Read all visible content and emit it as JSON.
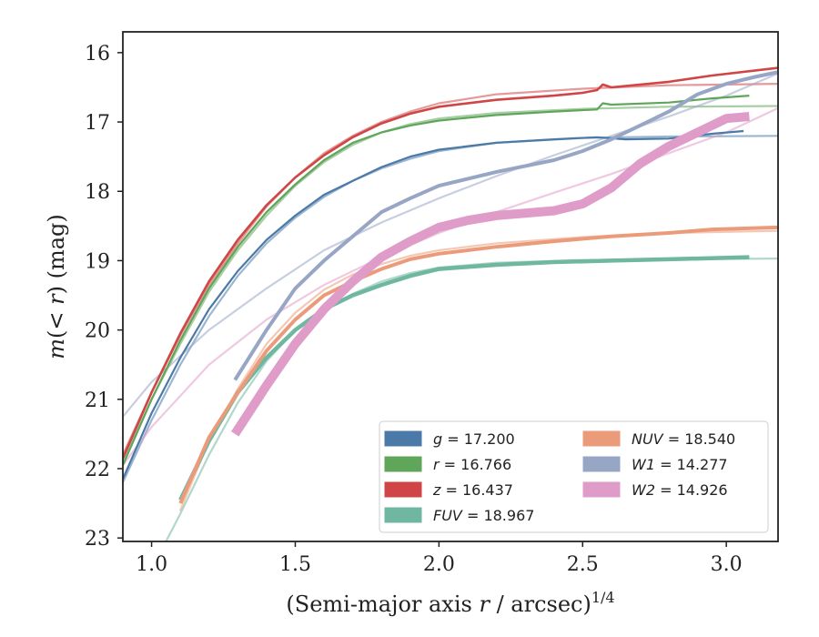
{
  "chart_data": {
    "type": "line",
    "xlabel": "(Semi-major axis r / arcsec)^1/4",
    "xlabel_parts": {
      "prefix": "(Semi-major axis ",
      "var": "r",
      "mid": " / arcsec)",
      "sup": "1/4"
    },
    "ylabel": "m(< r) (mag)",
    "ylabel_parts": {
      "var": "m",
      "mid": "(< ",
      "var2": "r",
      "tail": ") (mag)"
    },
    "xlim": [
      0.9,
      3.18
    ],
    "ylim": [
      23.05,
      15.7
    ],
    "y_inverted": true,
    "xticks": [
      1.0,
      1.5,
      2.0,
      2.5,
      3.0
    ],
    "xtick_labels": [
      "1.0",
      "1.5",
      "2.0",
      "2.5",
      "3.0"
    ],
    "yticks": [
      16,
      17,
      18,
      19,
      20,
      21,
      22,
      23
    ],
    "ytick_labels": [
      "16",
      "17",
      "18",
      "19",
      "20",
      "21",
      "22",
      "23"
    ],
    "grid": false,
    "legend_position": "lower-right",
    "series": [
      {
        "band": "g",
        "label": "= 17.200",
        "color": "#4c7aa8",
        "width": 2.2,
        "data": [
          [
            0.9,
            22.15
          ],
          [
            1.0,
            21.2
          ],
          [
            1.1,
            20.4
          ],
          [
            1.2,
            19.7
          ],
          [
            1.3,
            19.15
          ],
          [
            1.4,
            18.7
          ],
          [
            1.5,
            18.35
          ],
          [
            1.6,
            18.05
          ],
          [
            1.7,
            17.85
          ],
          [
            1.8,
            17.65
          ],
          [
            1.9,
            17.5
          ],
          [
            2.0,
            17.4
          ],
          [
            2.2,
            17.3
          ],
          [
            2.4,
            17.25
          ],
          [
            2.55,
            17.22
          ],
          [
            2.65,
            17.25
          ],
          [
            2.8,
            17.24
          ],
          [
            2.95,
            17.17
          ],
          [
            3.06,
            17.13
          ]
        ],
        "fit": [
          [
            0.9,
            22.2
          ],
          [
            1.0,
            21.3
          ],
          [
            1.1,
            20.5
          ],
          [
            1.2,
            19.8
          ],
          [
            1.3,
            19.22
          ],
          [
            1.4,
            18.75
          ],
          [
            1.5,
            18.38
          ],
          [
            1.6,
            18.08
          ],
          [
            1.7,
            17.85
          ],
          [
            1.8,
            17.67
          ],
          [
            1.9,
            17.53
          ],
          [
            2.0,
            17.42
          ],
          [
            2.2,
            17.3
          ],
          [
            2.5,
            17.23
          ],
          [
            2.8,
            17.21
          ],
          [
            3.18,
            17.2
          ]
        ]
      },
      {
        "band": "r",
        "label": "= 16.766",
        "color": "#5fa65a",
        "width": 2.2,
        "data": [
          [
            0.9,
            21.95
          ],
          [
            1.0,
            21.0
          ],
          [
            1.1,
            20.15
          ],
          [
            1.2,
            19.4
          ],
          [
            1.3,
            18.8
          ],
          [
            1.4,
            18.3
          ],
          [
            1.5,
            17.9
          ],
          [
            1.6,
            17.55
          ],
          [
            1.7,
            17.3
          ],
          [
            1.8,
            17.15
          ],
          [
            1.9,
            17.05
          ],
          [
            2.0,
            16.98
          ],
          [
            2.2,
            16.9
          ],
          [
            2.4,
            16.85
          ],
          [
            2.55,
            16.82
          ],
          [
            2.57,
            16.73
          ],
          [
            2.6,
            16.75
          ],
          [
            2.8,
            16.72
          ],
          [
            2.95,
            16.66
          ],
          [
            3.08,
            16.62
          ]
        ],
        "fit": [
          [
            0.9,
            21.9
          ],
          [
            1.0,
            21.0
          ],
          [
            1.1,
            20.2
          ],
          [
            1.2,
            19.45
          ],
          [
            1.3,
            18.85
          ],
          [
            1.4,
            18.35
          ],
          [
            1.5,
            17.92
          ],
          [
            1.6,
            17.58
          ],
          [
            1.7,
            17.33
          ],
          [
            1.8,
            17.15
          ],
          [
            1.9,
            17.03
          ],
          [
            2.0,
            16.95
          ],
          [
            2.2,
            16.87
          ],
          [
            2.5,
            16.81
          ],
          [
            2.8,
            16.78
          ],
          [
            3.18,
            16.77
          ]
        ]
      },
      {
        "band": "z",
        "label": "= 16.437",
        "color": "#d04545",
        "width": 2.6,
        "data": [
          [
            0.9,
            21.85
          ],
          [
            1.0,
            20.9
          ],
          [
            1.1,
            20.05
          ],
          [
            1.2,
            19.3
          ],
          [
            1.3,
            18.7
          ],
          [
            1.4,
            18.2
          ],
          [
            1.5,
            17.8
          ],
          [
            1.6,
            17.48
          ],
          [
            1.7,
            17.22
          ],
          [
            1.8,
            17.02
          ],
          [
            1.9,
            16.88
          ],
          [
            2.0,
            16.78
          ],
          [
            2.2,
            16.68
          ],
          [
            2.4,
            16.62
          ],
          [
            2.5,
            16.58
          ],
          [
            2.55,
            16.54
          ],
          [
            2.57,
            16.46
          ],
          [
            2.6,
            16.5
          ],
          [
            2.8,
            16.42
          ],
          [
            2.95,
            16.33
          ],
          [
            3.18,
            16.22
          ]
        ],
        "fit": [
          [
            0.9,
            21.8
          ],
          [
            1.0,
            20.9
          ],
          [
            1.1,
            20.08
          ],
          [
            1.2,
            19.35
          ],
          [
            1.3,
            18.75
          ],
          [
            1.4,
            18.22
          ],
          [
            1.5,
            17.8
          ],
          [
            1.6,
            17.45
          ],
          [
            1.7,
            17.2
          ],
          [
            1.8,
            17.0
          ],
          [
            1.9,
            16.85
          ],
          [
            2.0,
            16.73
          ],
          [
            2.2,
            16.6
          ],
          [
            2.5,
            16.52
          ],
          [
            2.8,
            16.47
          ],
          [
            3.18,
            16.45
          ]
        ]
      },
      {
        "band": "FUV",
        "label": "= 18.967",
        "color": "#6fb7a0",
        "width": 4.5,
        "data": [
          [
            1.1,
            22.45
          ],
          [
            1.2,
            21.6
          ],
          [
            1.3,
            20.9
          ],
          [
            1.4,
            20.4
          ],
          [
            1.5,
            20.0
          ],
          [
            1.6,
            19.7
          ],
          [
            1.7,
            19.5
          ],
          [
            1.8,
            19.35
          ],
          [
            1.9,
            19.22
          ],
          [
            2.0,
            19.12
          ],
          [
            2.2,
            19.06
          ],
          [
            2.4,
            19.02
          ],
          [
            2.6,
            19.0
          ],
          [
            2.8,
            18.98
          ],
          [
            3.08,
            18.95
          ]
        ],
        "fit": [
          [
            1.05,
            23.05
          ],
          [
            1.1,
            22.65
          ],
          [
            1.2,
            21.8
          ],
          [
            1.3,
            21.05
          ],
          [
            1.4,
            20.45
          ],
          [
            1.5,
            20.0
          ],
          [
            1.6,
            19.7
          ],
          [
            1.7,
            19.48
          ],
          [
            1.8,
            19.3
          ],
          [
            1.9,
            19.18
          ],
          [
            2.0,
            19.1
          ],
          [
            2.2,
            19.03
          ],
          [
            2.5,
            18.99
          ],
          [
            3.18,
            18.97
          ]
        ]
      },
      {
        "band": "NUV",
        "label": "= 18.540",
        "color": "#ec9b7a",
        "width": 4,
        "data": [
          [
            1.1,
            22.5
          ],
          [
            1.2,
            21.55
          ],
          [
            1.3,
            20.9
          ],
          [
            1.4,
            20.3
          ],
          [
            1.5,
            19.85
          ],
          [
            1.6,
            19.5
          ],
          [
            1.7,
            19.3
          ],
          [
            1.8,
            19.12
          ],
          [
            1.9,
            18.98
          ],
          [
            2.0,
            18.9
          ],
          [
            2.2,
            18.8
          ],
          [
            2.4,
            18.72
          ],
          [
            2.6,
            18.65
          ],
          [
            2.8,
            18.6
          ],
          [
            2.95,
            18.55
          ],
          [
            3.18,
            18.52
          ]
        ],
        "fit": [
          [
            1.1,
            22.6
          ],
          [
            1.2,
            21.6
          ],
          [
            1.3,
            20.85
          ],
          [
            1.4,
            20.2
          ],
          [
            1.5,
            19.75
          ],
          [
            1.6,
            19.42
          ],
          [
            1.7,
            19.2
          ],
          [
            1.8,
            19.05
          ],
          [
            1.9,
            18.93
          ],
          [
            2.0,
            18.85
          ],
          [
            2.2,
            18.75
          ],
          [
            2.5,
            18.66
          ],
          [
            2.8,
            18.6
          ],
          [
            3.18,
            18.57
          ]
        ]
      },
      {
        "band": "W1",
        "label": "= 14.277",
        "color": "#97a6c4",
        "width": 4,
        "data": [
          [
            1.29,
            20.72
          ],
          [
            1.4,
            20.0
          ],
          [
            1.5,
            19.4
          ],
          [
            1.6,
            19.0
          ],
          [
            1.7,
            18.65
          ],
          [
            1.8,
            18.3
          ],
          [
            1.9,
            18.1
          ],
          [
            2.0,
            17.92
          ],
          [
            2.2,
            17.72
          ],
          [
            2.4,
            17.55
          ],
          [
            2.5,
            17.42
          ],
          [
            2.6,
            17.25
          ],
          [
            2.7,
            17.05
          ],
          [
            2.8,
            16.85
          ],
          [
            2.9,
            16.6
          ],
          [
            3.0,
            16.45
          ],
          [
            3.1,
            16.35
          ],
          [
            3.18,
            16.28
          ]
        ],
        "fit": [
          [
            0.9,
            21.25
          ],
          [
            1.0,
            20.75
          ],
          [
            1.2,
            20.0
          ],
          [
            1.4,
            19.4
          ],
          [
            1.6,
            18.85
          ],
          [
            1.8,
            18.45
          ],
          [
            2.0,
            18.1
          ],
          [
            2.2,
            17.78
          ],
          [
            2.4,
            17.48
          ],
          [
            2.6,
            17.2
          ],
          [
            2.8,
            16.92
          ],
          [
            3.0,
            16.62
          ],
          [
            3.18,
            16.3
          ]
        ]
      },
      {
        "band": "W2",
        "label": "= 14.926",
        "color": "#e09cc9",
        "width": 10,
        "data": [
          [
            1.29,
            21.5
          ],
          [
            1.4,
            20.8
          ],
          [
            1.5,
            20.2
          ],
          [
            1.6,
            19.7
          ],
          [
            1.7,
            19.3
          ],
          [
            1.8,
            18.95
          ],
          [
            1.9,
            18.72
          ],
          [
            2.0,
            18.52
          ],
          [
            2.1,
            18.42
          ],
          [
            2.2,
            18.35
          ],
          [
            2.4,
            18.28
          ],
          [
            2.5,
            18.18
          ],
          [
            2.6,
            17.95
          ],
          [
            2.7,
            17.6
          ],
          [
            2.8,
            17.35
          ],
          [
            2.9,
            17.15
          ],
          [
            3.0,
            16.95
          ],
          [
            3.08,
            16.92
          ]
        ],
        "fit": [
          [
            0.9,
            21.95
          ],
          [
            1.0,
            21.4
          ],
          [
            1.2,
            20.5
          ],
          [
            1.4,
            19.85
          ],
          [
            1.6,
            19.35
          ],
          [
            1.8,
            18.95
          ],
          [
            2.0,
            18.6
          ],
          [
            2.2,
            18.3
          ],
          [
            2.4,
            18.02
          ],
          [
            2.6,
            17.75
          ],
          [
            2.8,
            17.45
          ],
          [
            3.0,
            17.15
          ],
          [
            3.18,
            16.8
          ]
        ]
      }
    ]
  }
}
